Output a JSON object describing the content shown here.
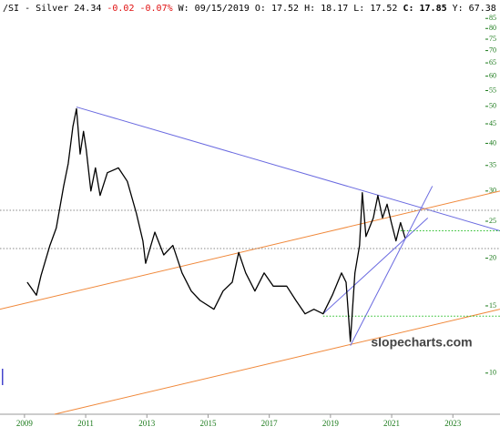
{
  "chart_data": {
    "type": "line",
    "header": [
      {
        "text": "/SI - Silver 24.34",
        "color": "#000000",
        "bold": false
      },
      {
        "text": "-0.02 -0.07%",
        "color": "#e01010",
        "bold": false
      },
      {
        "text": "W: 09/15/2019 O: 17.52 H: 18.17 L: 17.52",
        "color": "#000000",
        "bold": false
      },
      {
        "text": "C: 17.85",
        "color": "#000000",
        "bold": true
      },
      {
        "text": "Y: 67.38",
        "color": "#000000",
        "bold": false
      }
    ],
    "watermark": "slopecharts.com",
    "log_scale": true,
    "xlim": [
      2008.2,
      2024.54
    ],
    "ylim": [
      7.8,
      95
    ],
    "xticks": [
      2009,
      2011,
      2013,
      2015,
      2017,
      2019,
      2021,
      2023
    ],
    "yticks": [
      10,
      15,
      20,
      25,
      30,
      35,
      40,
      45,
      50,
      55,
      60,
      65,
      70,
      75,
      80,
      85
    ],
    "tick_color": "#1a7a1a",
    "series": [
      {
        "name": "Silver",
        "color": "#000000",
        "x": [
          2009.09,
          2009.39,
          2009.54,
          2009.83,
          2010.04,
          2010.28,
          2010.43,
          2010.58,
          2010.7,
          2010.82,
          2010.93,
          2011.02,
          2011.17,
          2011.32,
          2011.47,
          2011.71,
          2012.07,
          2012.36,
          2012.66,
          2012.87,
          2012.96,
          2013.26,
          2013.55,
          2013.85,
          2014.15,
          2014.45,
          2014.74,
          2015.19,
          2015.49,
          2015.79,
          2016.0,
          2016.23,
          2016.53,
          2016.83,
          2017.13,
          2017.57,
          2017.87,
          2018.17,
          2018.46,
          2018.76,
          2019.06,
          2019.36,
          2019.51,
          2019.65,
          2019.8,
          2019.95,
          2020.04,
          2020.16,
          2020.4,
          2020.55,
          2020.7,
          2020.85,
          2020.99,
          2021.14,
          2021.29,
          2021.44
        ],
        "values": [
          17.3,
          16,
          18,
          21.6,
          24,
          30.9,
          35.4,
          44.2,
          49.3,
          37.5,
          43,
          38.5,
          30,
          34.5,
          29.2,
          33.5,
          34.5,
          31.8,
          26.2,
          22.2,
          19.4,
          23.4,
          20.4,
          21.6,
          18.3,
          16.4,
          15.5,
          14.7,
          16.4,
          17.3,
          20.7,
          18.3,
          16.4,
          18.3,
          16.9,
          16.9,
          15.5,
          14.3,
          14.7,
          14.3,
          16,
          18.3,
          17.3,
          12.1,
          18.3,
          21.6,
          29.7,
          22.8,
          25.5,
          29.2,
          25.5,
          27.7,
          24.8,
          22.2,
          24.8,
          22.6
        ]
      }
    ],
    "trendlines": [
      {
        "x": [
          2010.7,
          2024.54
        ],
        "y": [
          49.8,
          23.6
        ],
        "color": "#6a6ae0",
        "dash": false
      },
      {
        "x": [
          2008.2,
          2024.54
        ],
        "y": [
          14.7,
          30
        ],
        "color": "#f0883a",
        "dash": false
      },
      {
        "x": [
          2009.98,
          2024.54
        ],
        "y": [
          7.8,
          14.7
        ],
        "color": "#f0883a",
        "dash": false
      },
      {
        "x": [
          2019.65,
          2022.33
        ],
        "y": [
          11.8,
          30.9
        ],
        "color": "#6a6ae0",
        "dash": false
      },
      {
        "x": [
          2018.76,
          2022.18
        ],
        "y": [
          14.3,
          25.5
        ],
        "color": "#6a6ae0",
        "dash": false
      },
      {
        "x": [
          2008.2,
          2024.54
        ],
        "y": [
          26.7,
          26.7
        ],
        "color": "#888888",
        "dash": true
      },
      {
        "x": [
          2008.2,
          2024.54
        ],
        "y": [
          21.2,
          21.2
        ],
        "color": "#888888",
        "dash": true
      },
      {
        "x": [
          2021.29,
          2024.54
        ],
        "y": [
          23.6,
          23.6
        ],
        "color": "#22bb22",
        "dash": true
      },
      {
        "x": [
          2018.76,
          2024.54
        ],
        "y": [
          14.1,
          14.1
        ],
        "color": "#22bb22",
        "dash": true
      }
    ]
  }
}
